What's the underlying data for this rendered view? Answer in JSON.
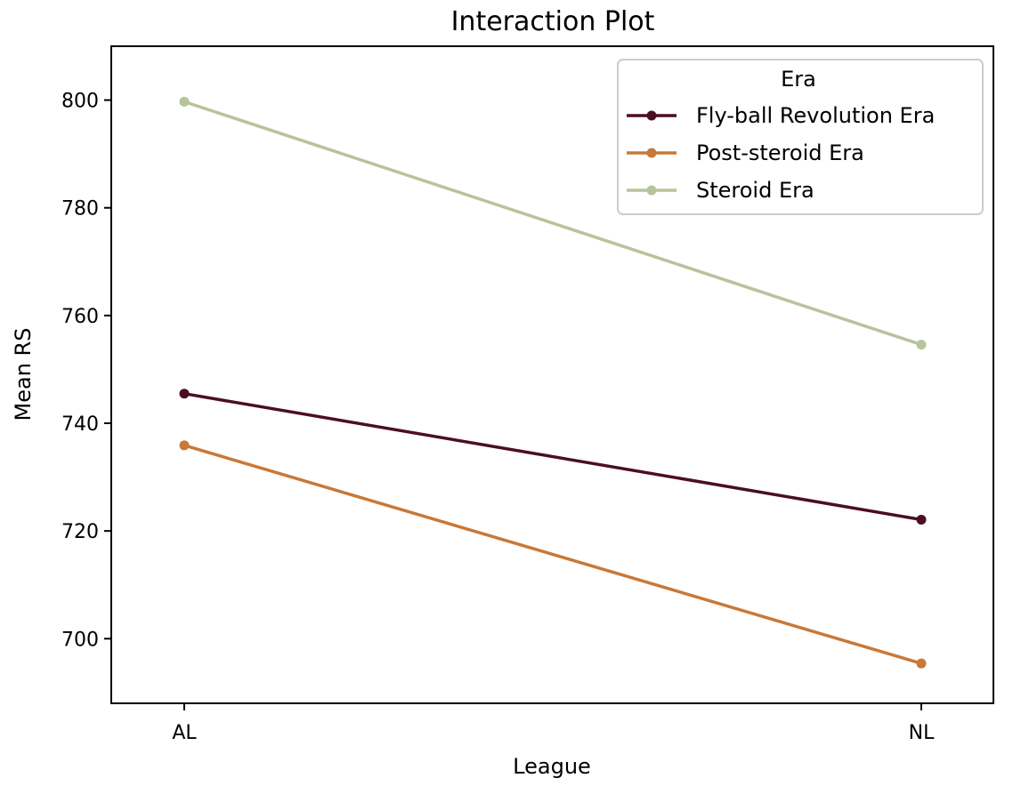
{
  "chart_data": {
    "type": "line",
    "title": "Interaction Plot",
    "xlabel": "League",
    "ylabel": "Mean RS",
    "categories": [
      "AL",
      "NL"
    ],
    "ylim": [
      688,
      810
    ],
    "yticks": [
      700,
      720,
      740,
      760,
      780,
      800
    ],
    "grid": false,
    "legend": {
      "title": "Era",
      "placement": "top-right"
    },
    "series": [
      {
        "name": "Fly-ball Revolution Era",
        "values": [
          745.5,
          722.1
        ],
        "color": "#4b0f1f"
      },
      {
        "name": "Post-steroid Era",
        "values": [
          735.9,
          695.4
        ],
        "color": "#c87838"
      },
      {
        "name": "Steroid Era",
        "values": [
          799.7,
          754.6
        ],
        "color": "#b7c49a"
      }
    ]
  }
}
